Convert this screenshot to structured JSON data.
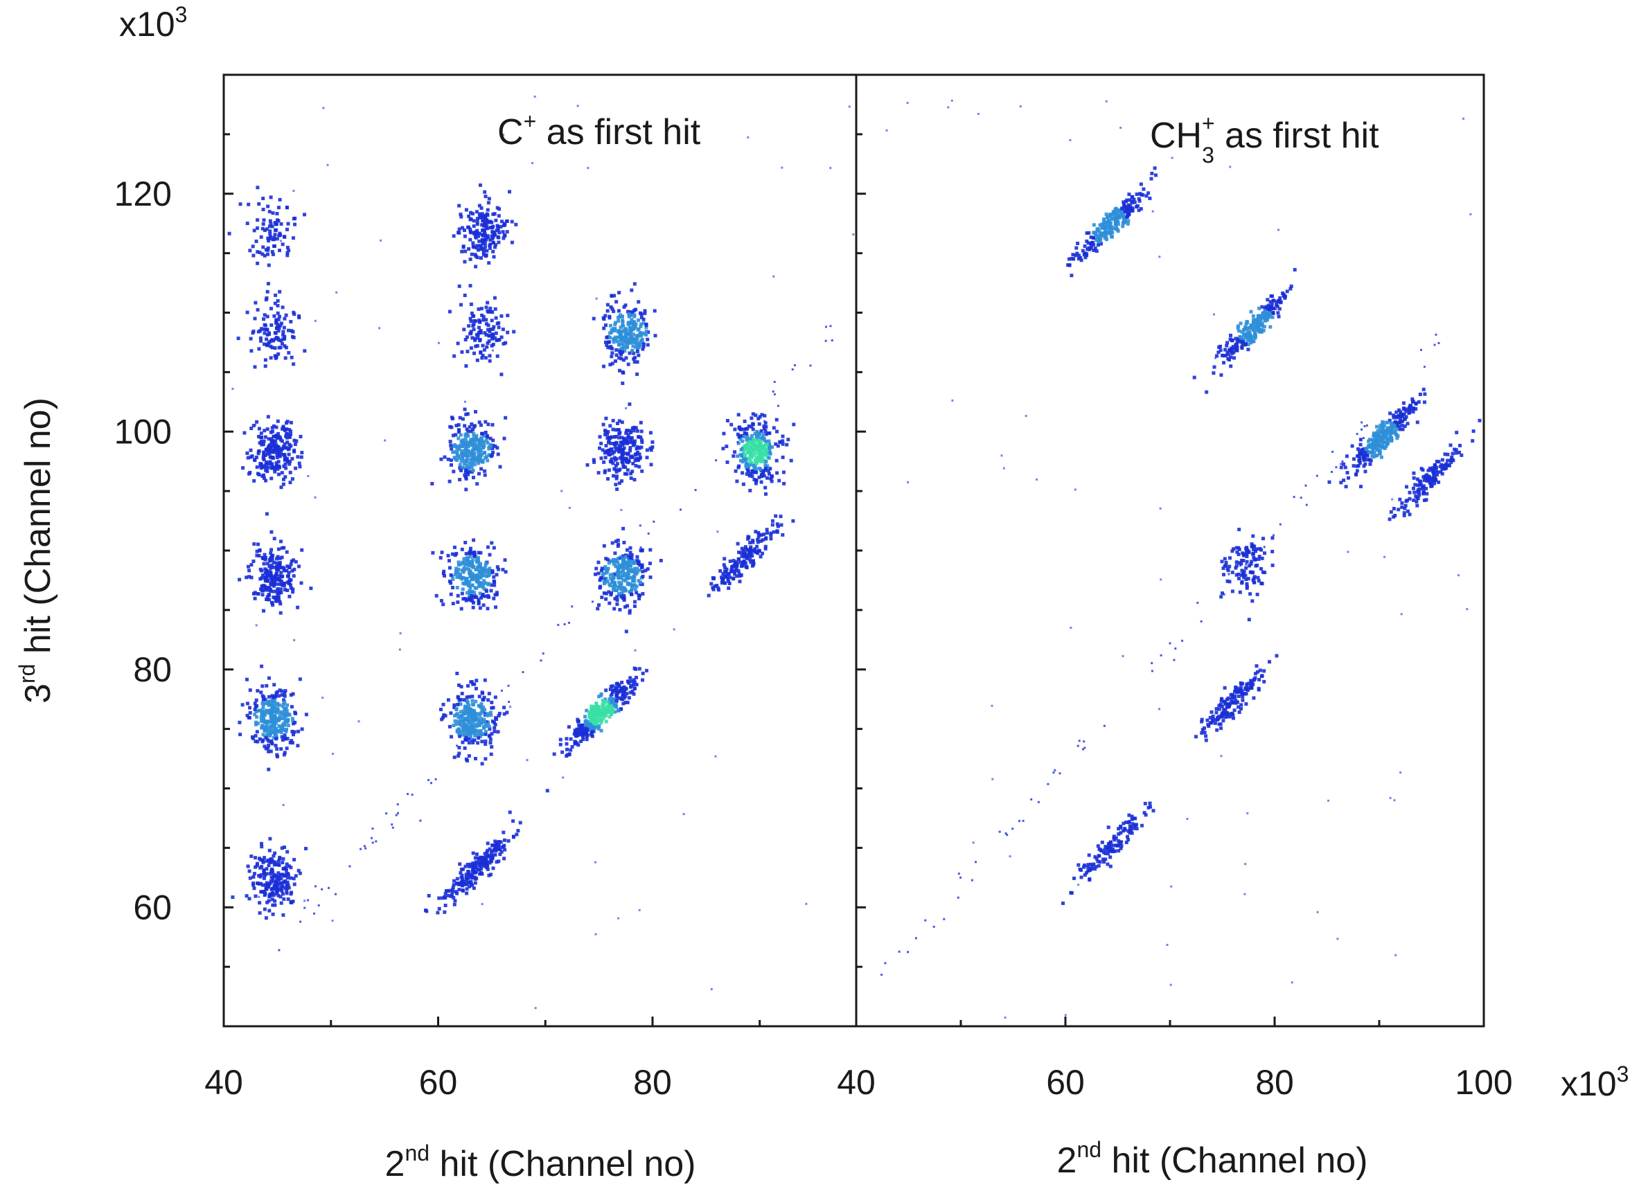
{
  "chart_data": {
    "type": "heatmap",
    "style": "2D coincidence map, blue-to-green color scale for counts",
    "colors": {
      "low": "#1a2fd6",
      "mid": "#2f8fd8",
      "high": "#39e0a6",
      "axis": "#1a1a1a"
    },
    "y_multiplier_label": {
      "base": "x10",
      "exp": "3"
    },
    "x_multiplier_label": {
      "base": "x10",
      "exp": "3"
    },
    "ylabel": {
      "pre": "3",
      "sup": "rd",
      "post": " hit (Channel no)"
    },
    "ylim": [
      50,
      130
    ],
    "yticks": [
      "60",
      "80",
      "100",
      "120"
    ],
    "panels": [
      {
        "title": {
          "pre": "C",
          "sup": "+",
          "post": " as first hit"
        },
        "xlabel": {
          "pre": "2",
          "sup": "nd",
          "post": " hit (Channel no)"
        },
        "xlim": [
          40,
          99
        ],
        "xticks": [
          "40",
          "60",
          "80"
        ],
        "islands": [
          {
            "x": 44.5,
            "y": 62.5,
            "intensity": 0.55
          },
          {
            "x": 44.5,
            "y": 76,
            "intensity": 0.85
          },
          {
            "x": 44.5,
            "y": 88,
            "intensity": 0.6
          },
          {
            "x": 44.5,
            "y": 98.5,
            "intensity": 0.6
          },
          {
            "x": 44.5,
            "y": 108.5,
            "intensity": 0.2
          },
          {
            "x": 44.5,
            "y": 117,
            "intensity": 0.1
          },
          {
            "x": 63,
            "y": 76,
            "intensity": 0.85
          },
          {
            "x": 63,
            "y": 88,
            "intensity": 0.75
          },
          {
            "x": 63,
            "y": 98.5,
            "intensity": 0.75
          },
          {
            "x": 64,
            "y": 108.5,
            "intensity": 0.2
          },
          {
            "x": 64,
            "y": 117,
            "intensity": 0.45
          },
          {
            "x": 77,
            "y": 88,
            "intensity": 0.8
          },
          {
            "x": 77,
            "y": 98.5,
            "intensity": 0.55
          },
          {
            "x": 77.5,
            "y": 108.5,
            "intensity": 0.7
          },
          {
            "x": 89.5,
            "y": 98.5,
            "intensity": 0.9
          },
          {
            "x": 63.5,
            "y": 63.5,
            "intensity": 0.6,
            "shape": "diagonal"
          },
          {
            "x": 75,
            "y": 76.5,
            "intensity": 1.0,
            "shape": "diagonal"
          },
          {
            "x": 88.5,
            "y": 89.5,
            "intensity": 0.4,
            "shape": "diagonal"
          }
        ]
      },
      {
        "title": {
          "pre": "CH",
          "sub": "3",
          "sup": "+",
          "post": " as first hit"
        },
        "xlabel": {
          "pre": "2",
          "sup": "nd",
          "post": " hit (Channel no)"
        },
        "xlim": [
          40,
          100
        ],
        "xticks": [
          "40",
          "60",
          "80",
          "100"
        ],
        "islands": [
          {
            "x": 64,
            "y": 117.5,
            "intensity": 0.7,
            "shape": "diagonal"
          },
          {
            "x": 78,
            "y": 109,
            "intensity": 0.7,
            "shape": "diagonal"
          },
          {
            "x": 90,
            "y": 99.5,
            "intensity": 0.8,
            "shape": "diagonal"
          },
          {
            "x": 94.5,
            "y": 96,
            "intensity": 0.3,
            "shape": "diagonal"
          },
          {
            "x": 77,
            "y": 89,
            "intensity": 0.2
          },
          {
            "x": 76,
            "y": 77.5,
            "intensity": 0.35,
            "shape": "diagonal"
          },
          {
            "x": 64,
            "y": 65,
            "intensity": 0.25,
            "shape": "diagonal"
          }
        ]
      }
    ]
  }
}
